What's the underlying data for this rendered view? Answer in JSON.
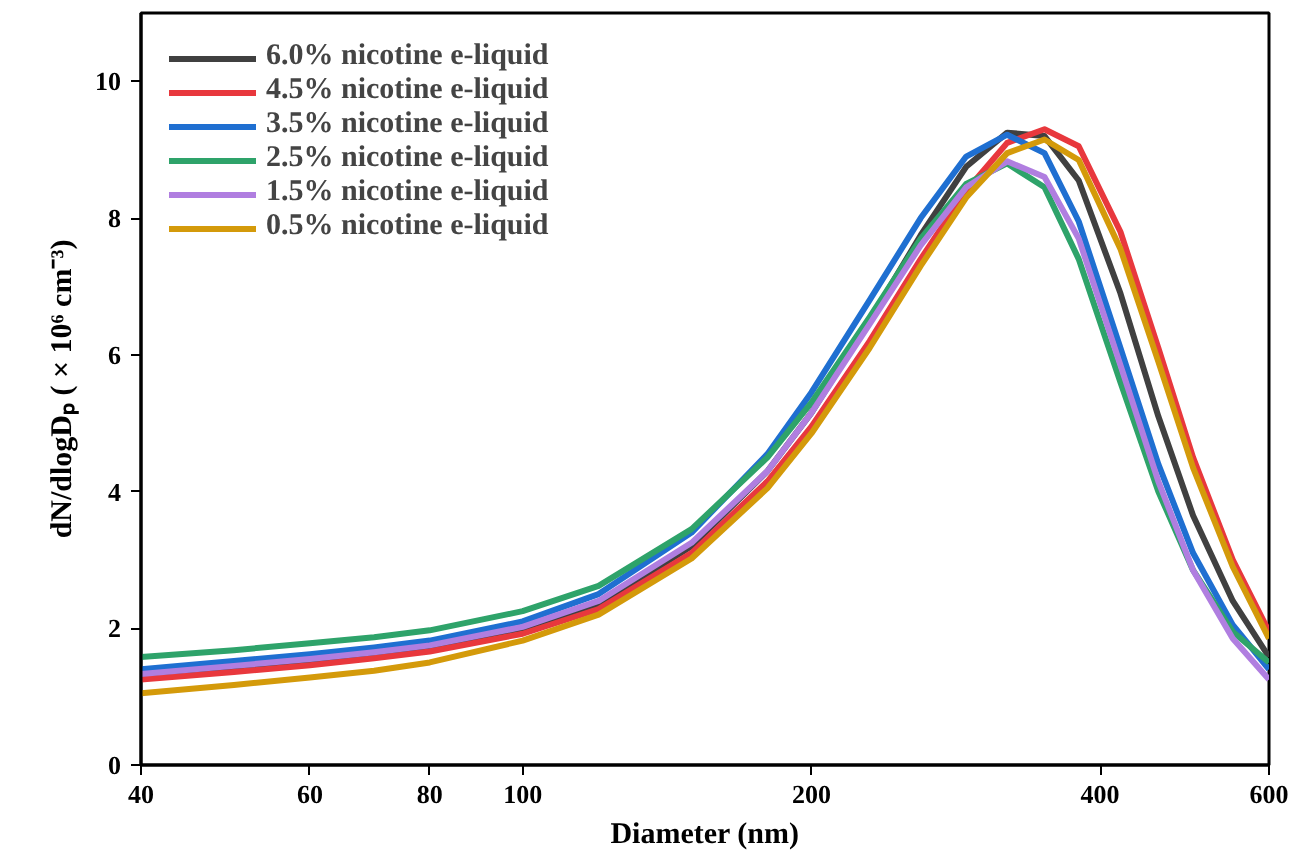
{
  "chart_data": {
    "type": "line",
    "xlabel": "Diameter (nm)",
    "ylabel": "dN/dlogDₚ ( × 10⁶ cm⁻³)",
    "log": "x",
    "xlim": [
      40,
      600
    ],
    "xticks": [
      40,
      60,
      80,
      100,
      200,
      400,
      600
    ],
    "ylim": [
      0,
      11
    ],
    "yticks": [
      0,
      2,
      4,
      6,
      8,
      10
    ],
    "grid": false,
    "legend": "top left",
    "marker": "none",
    "line_style": "solid",
    "x": [
      40,
      50,
      60,
      70,
      80,
      100,
      120,
      150,
      180,
      200,
      230,
      260,
      290,
      320,
      350,
      380,
      420,
      460,
      500,
      550,
      600
    ],
    "series": [
      {
        "name": "6.0% nicotine e-liquid",
        "color": "#404040",
        "values": [
          1.3,
          1.42,
          1.52,
          1.62,
          1.72,
          1.98,
          2.35,
          3.2,
          4.3,
          5.15,
          6.5,
          7.75,
          8.75,
          9.25,
          9.2,
          8.55,
          6.9,
          5.1,
          3.65,
          2.4,
          1.58
        ]
      },
      {
        "name": "4.5% nicotine e-liquid",
        "color": "#e8383d",
        "values": [
          1.25,
          1.36,
          1.46,
          1.56,
          1.66,
          1.92,
          2.28,
          3.1,
          4.15,
          4.95,
          6.2,
          7.4,
          8.4,
          9.1,
          9.3,
          9.05,
          7.8,
          6.1,
          4.5,
          3.0,
          1.95
        ]
      },
      {
        "name": "3.5% nicotine e-liquid",
        "color": "#1f6fd1",
        "values": [
          1.4,
          1.52,
          1.62,
          1.72,
          1.82,
          2.1,
          2.5,
          3.4,
          4.55,
          5.45,
          6.8,
          8.0,
          8.9,
          9.22,
          8.95,
          7.95,
          6.1,
          4.4,
          3.1,
          2.05,
          1.4
        ]
      },
      {
        "name": "2.5% nicotine e-liquid",
        "color": "#2ea36a",
        "values": [
          1.58,
          1.68,
          1.78,
          1.87,
          1.97,
          2.25,
          2.62,
          3.45,
          4.5,
          5.3,
          6.55,
          7.7,
          8.5,
          8.8,
          8.45,
          7.4,
          5.6,
          4.0,
          2.85,
          1.95,
          1.5
        ]
      },
      {
        "name": "1.5% nicotine e-liquid",
        "color": "#b07ee0",
        "values": [
          1.33,
          1.45,
          1.55,
          1.65,
          1.75,
          2.02,
          2.4,
          3.25,
          4.3,
          5.15,
          6.45,
          7.6,
          8.45,
          8.83,
          8.6,
          7.7,
          5.85,
          4.15,
          2.85,
          1.85,
          1.25
        ]
      },
      {
        "name": "0.5% nicotine e-liquid",
        "color": "#d49a0a",
        "values": [
          1.05,
          1.17,
          1.28,
          1.38,
          1.5,
          1.82,
          2.2,
          3.02,
          4.05,
          4.85,
          6.1,
          7.3,
          8.3,
          8.95,
          9.15,
          8.85,
          7.55,
          5.9,
          4.35,
          2.9,
          1.85
        ]
      }
    ]
  }
}
